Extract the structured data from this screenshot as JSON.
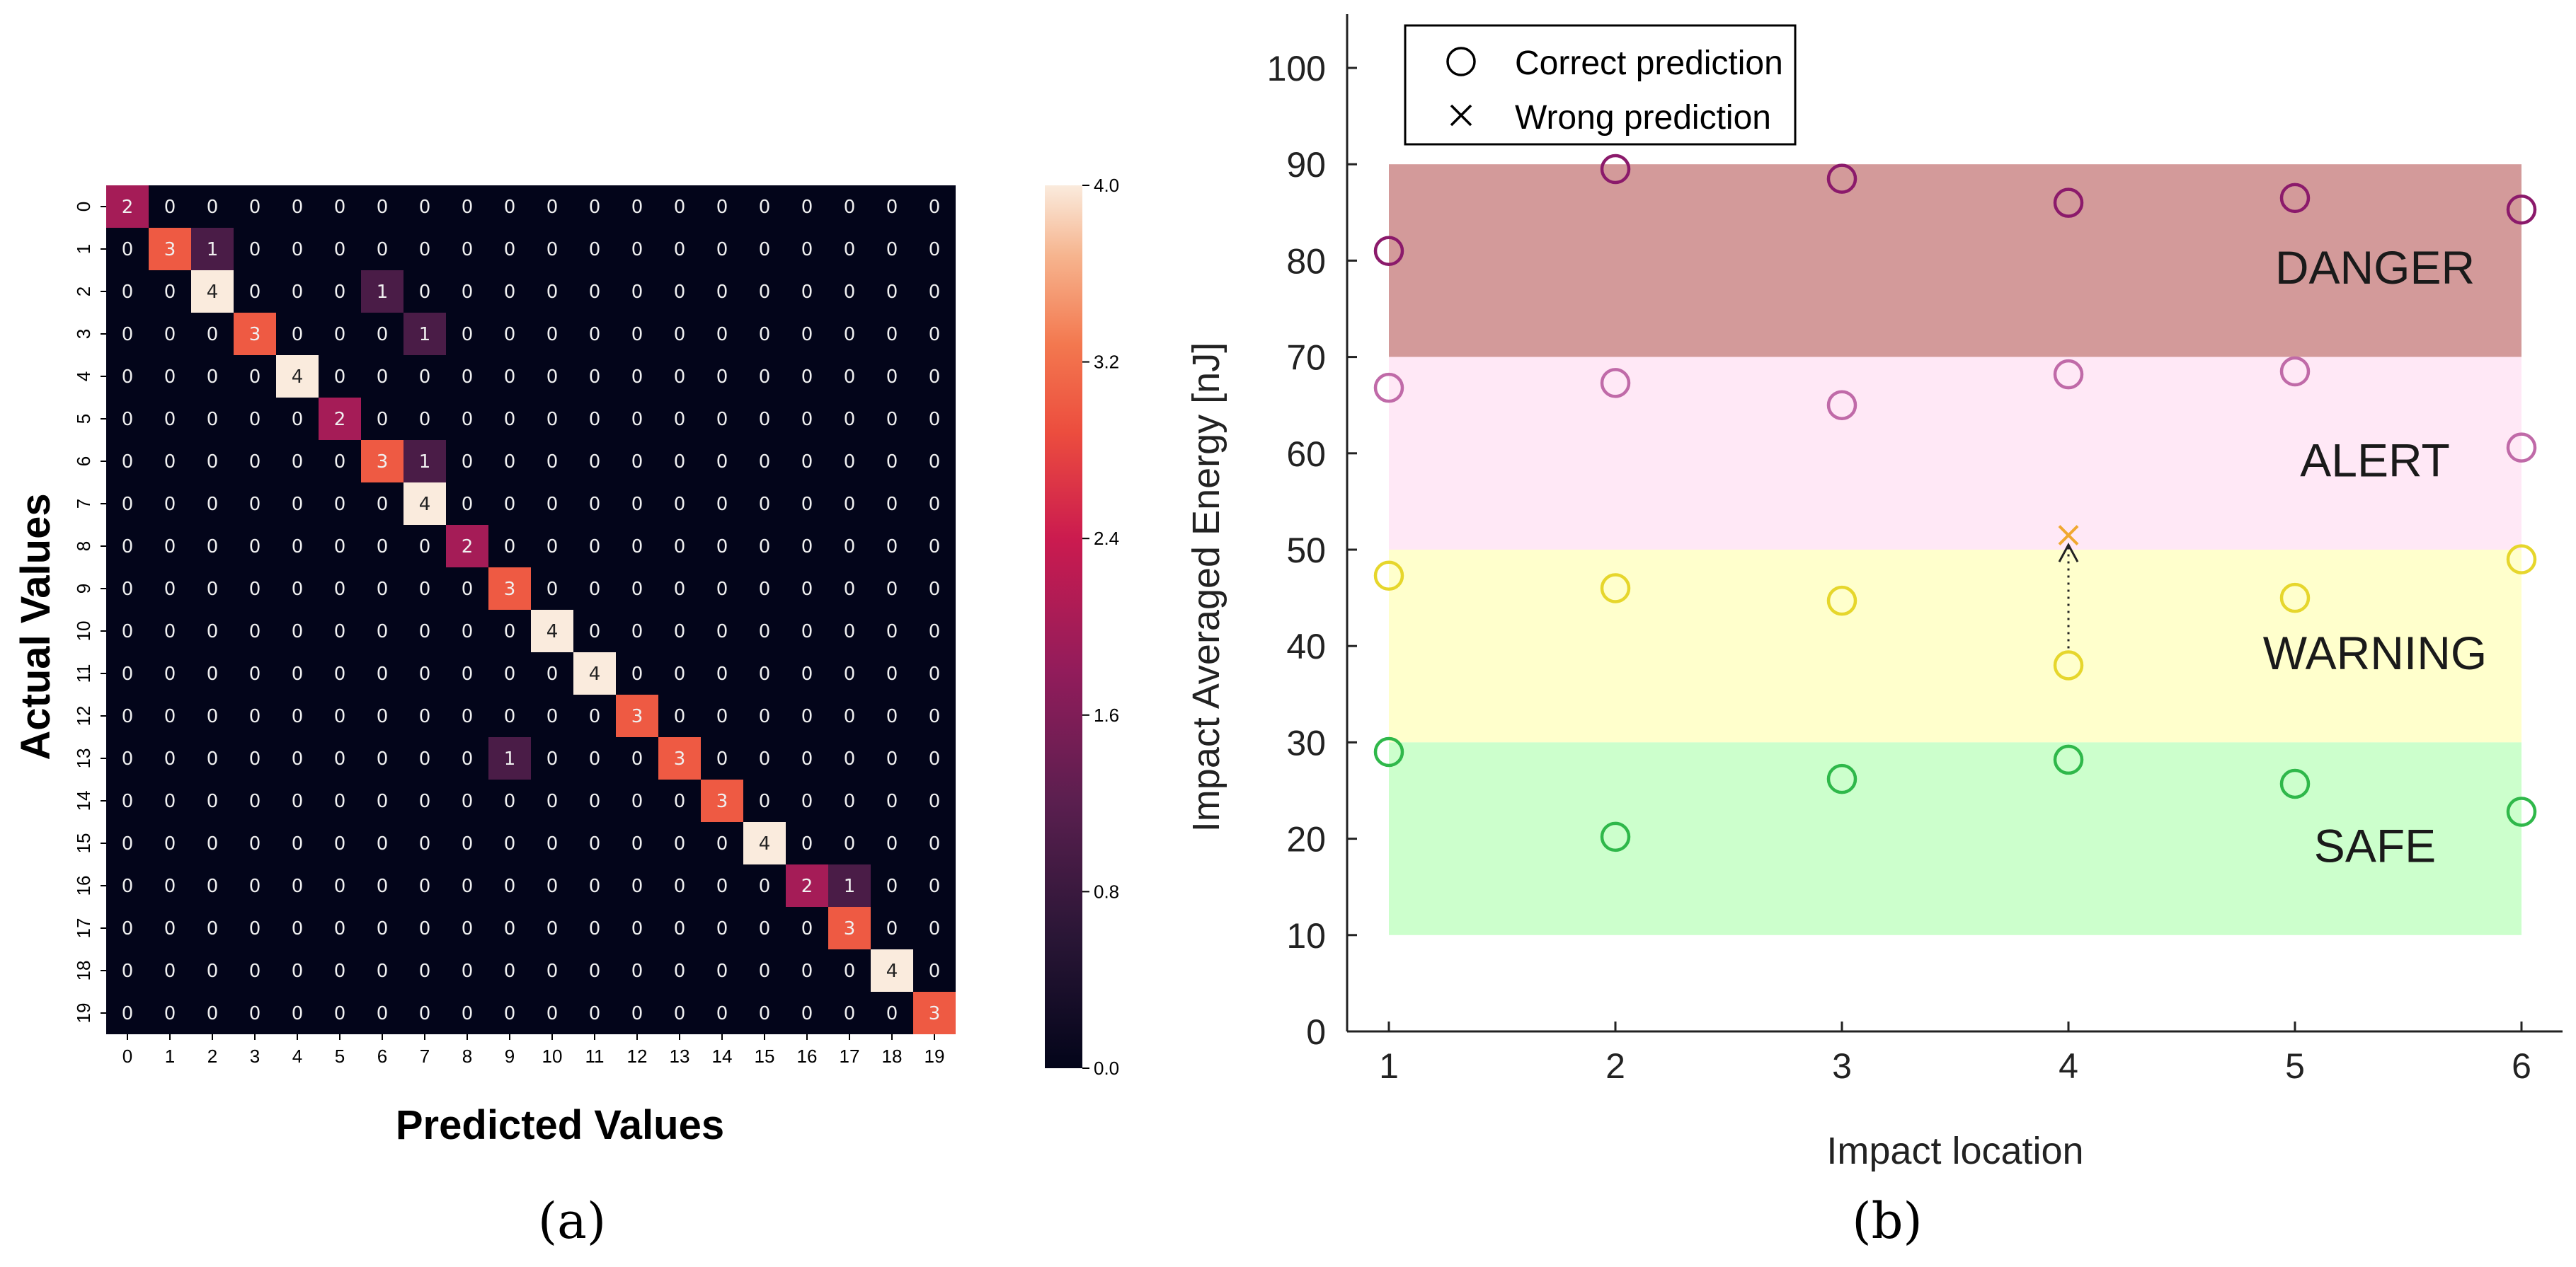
{
  "chart_data": [
    {
      "type": "heatmap",
      "panel_label": "(a)",
      "xlabel": "Predicted Values",
      "ylabel": "Actual Values",
      "x_ticks": [
        "0",
        "1",
        "2",
        "3",
        "4",
        "5",
        "6",
        "7",
        "8",
        "9",
        "10",
        "11",
        "12",
        "13",
        "14",
        "15",
        "16",
        "17",
        "18",
        "19"
      ],
      "y_ticks": [
        "0",
        "1",
        "2",
        "3",
        "4",
        "5",
        "6",
        "7",
        "8",
        "9",
        "10",
        "11",
        "12",
        "13",
        "14",
        "15",
        "16",
        "17",
        "18",
        "19"
      ],
      "cells": [
        {
          "row": 0,
          "col": 0,
          "value": 2
        },
        {
          "row": 1,
          "col": 1,
          "value": 3
        },
        {
          "row": 1,
          "col": 2,
          "value": 1
        },
        {
          "row": 2,
          "col": 2,
          "value": 4
        },
        {
          "row": 2,
          "col": 6,
          "value": 1
        },
        {
          "row": 3,
          "col": 3,
          "value": 3
        },
        {
          "row": 3,
          "col": 7,
          "value": 1
        },
        {
          "row": 4,
          "col": 4,
          "value": 4
        },
        {
          "row": 5,
          "col": 5,
          "value": 2
        },
        {
          "row": 6,
          "col": 6,
          "value": 3
        },
        {
          "row": 6,
          "col": 7,
          "value": 1
        },
        {
          "row": 7,
          "col": 7,
          "value": 4
        },
        {
          "row": 8,
          "col": 8,
          "value": 2
        },
        {
          "row": 9,
          "col": 9,
          "value": 3
        },
        {
          "row": 10,
          "col": 10,
          "value": 4
        },
        {
          "row": 11,
          "col": 11,
          "value": 4
        },
        {
          "row": 12,
          "col": 12,
          "value": 3
        },
        {
          "row": 13,
          "col": 9,
          "value": 1
        },
        {
          "row": 13,
          "col": 13,
          "value": 3
        },
        {
          "row": 14,
          "col": 14,
          "value": 3
        },
        {
          "row": 15,
          "col": 15,
          "value": 4
        },
        {
          "row": 16,
          "col": 16,
          "value": 2
        },
        {
          "row": 16,
          "col": 17,
          "value": 1
        },
        {
          "row": 17,
          "col": 17,
          "value": 3
        },
        {
          "row": 18,
          "col": 18,
          "value": 4
        },
        {
          "row": 19,
          "col": 19,
          "value": 3
        }
      ],
      "default_value": "0",
      "colorbar": {
        "range": [
          0,
          4
        ],
        "ticks": [
          "0.0",
          "0.8",
          "1.6",
          "2.4",
          "3.2",
          "4.0"
        ]
      }
    },
    {
      "type": "scatter",
      "panel_label": "(b)",
      "xlabel": "Impact location",
      "ylabel": "Impact Averaged Energy [nJ]",
      "xlim": [
        0.75,
        6.2
      ],
      "ylim": [
        0,
        105
      ],
      "x_ticks": [
        "1",
        "2",
        "3",
        "4",
        "5",
        "6"
      ],
      "y_ticks": [
        "0",
        "10",
        "20",
        "30",
        "40",
        "50",
        "60",
        "70",
        "80",
        "90",
        "100"
      ],
      "legend": {
        "position": "top-left",
        "entries": [
          {
            "marker": "circle",
            "label": "Correct prediction"
          },
          {
            "marker": "x",
            "label": "Wrong prediction"
          }
        ]
      },
      "bands": [
        {
          "label": "DANGER",
          "y_range": [
            70,
            90
          ],
          "color": "#d39a9a"
        },
        {
          "label": "ALERT",
          "y_range": [
            50,
            70
          ],
          "color": "#ffe8f6"
        },
        {
          "label": "WARNING",
          "y_range": [
            30,
            50
          ],
          "color": "#ffffcc"
        },
        {
          "label": "SAFE",
          "y_range": [
            10,
            30
          ],
          "color": "#ccffcc"
        }
      ],
      "series": [
        {
          "name": "Danger",
          "marker": "circle",
          "color": "#8b1a6b",
          "points": [
            {
              "x": 1,
              "y": 81
            },
            {
              "x": 2,
              "y": 89.5
            },
            {
              "x": 3,
              "y": 88.5
            },
            {
              "x": 4,
              "y": 86
            },
            {
              "x": 5,
              "y": 86.5
            },
            {
              "x": 6,
              "y": 85.3
            }
          ]
        },
        {
          "name": "Alert",
          "marker": "circle",
          "color": "#c06aa8",
          "points": [
            {
              "x": 1,
              "y": 66.8
            },
            {
              "x": 2,
              "y": 67.3
            },
            {
              "x": 3,
              "y": 65
            },
            {
              "x": 4,
              "y": 68.2
            },
            {
              "x": 5,
              "y": 68.5
            },
            {
              "x": 6,
              "y": 60.6
            }
          ]
        },
        {
          "name": "Warning",
          "marker": "circle",
          "color": "#e6d62c",
          "points": [
            {
              "x": 1,
              "y": 47.3
            },
            {
              "x": 2,
              "y": 46
            },
            {
              "x": 3,
              "y": 44.7
            },
            {
              "x": 4,
              "y": 38
            },
            {
              "x": 5,
              "y": 45
            },
            {
              "x": 6,
              "y": 49
            }
          ]
        },
        {
          "name": "Safe",
          "marker": "circle",
          "color": "#2fb84a",
          "points": [
            {
              "x": 1,
              "y": 29
            },
            {
              "x": 2,
              "y": 20.2
            },
            {
              "x": 3,
              "y": 26.2
            },
            {
              "x": 4,
              "y": 28.2
            },
            {
              "x": 5,
              "y": 25.7
            },
            {
              "x": 6,
              "y": 22.8
            }
          ]
        },
        {
          "name": "Wrong",
          "marker": "x",
          "color": "#f0a830",
          "points": [
            {
              "x": 4,
              "y": 51.5
            }
          ]
        }
      ],
      "annotations": [
        {
          "type": "dotted-arrow",
          "from": {
            "x": 4,
            "y": 38
          },
          "to": {
            "x": 4,
            "y": 50.5
          }
        }
      ]
    }
  ]
}
